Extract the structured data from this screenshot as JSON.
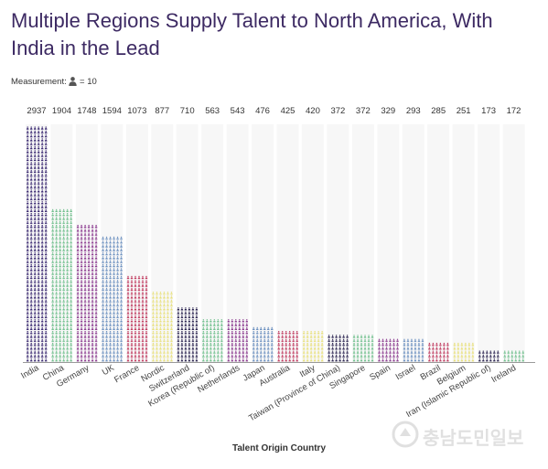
{
  "chart_data": {
    "type": "bar",
    "title": "Multiple Regions Supply Talent to North America, With India in the Lead",
    "measurement_label": "Measurement:",
    "measurement_value": "= 10",
    "xlabel": "Talent Origin Country",
    "ylabel": "",
    "ylim": [
      0,
      2940
    ],
    "grid": false,
    "categories": [
      "India",
      "China",
      "Germany",
      "UK",
      "France",
      "Nordic",
      "Switzerland",
      "Korea (Republic of)",
      "Netherlands",
      "Japan",
      "Australia",
      "Italy",
      "Taiwan (Province of China)",
      "Singapore",
      "Spain",
      "Israel",
      "Brazil",
      "Belgium",
      "Iran (Islamic Republic of)",
      "Ireland"
    ],
    "values": [
      2937,
      1904,
      1748,
      1594,
      1073,
      877,
      710,
      563,
      543,
      476,
      425,
      420,
      372,
      372,
      329,
      293,
      285,
      251,
      173,
      172
    ],
    "colors": [
      "#3b2a72",
      "#6fbf8c",
      "#8b3a8f",
      "#6a8fbf",
      "#c0395e",
      "#e8e07a",
      "#2a2350",
      "#6fbf8c",
      "#8b3a8f",
      "#6a8fbf",
      "#c0395e",
      "#e8e07a",
      "#2a2350",
      "#6fbf8c",
      "#8b3a8f",
      "#6a8fbf",
      "#c0395e",
      "#e8e07a",
      "#2a2350",
      "#6fbf8c"
    ]
  },
  "watermark": "충남도민일보"
}
